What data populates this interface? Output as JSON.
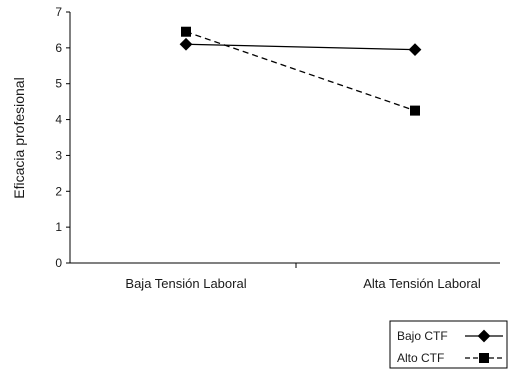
{
  "chart_data": {
    "type": "line",
    "ylabel": "Eficacia profesional",
    "categories": [
      "Baja Tensión Laboral",
      "Alta Tensión Laboral"
    ],
    "ylim": [
      0,
      7
    ],
    "yticks": [
      0,
      1,
      2,
      3,
      4,
      5,
      6,
      7
    ],
    "grid": false,
    "legend_position": "bottom-right",
    "series": [
      {
        "name": "Bajo CTF",
        "values": [
          6.1,
          5.95
        ],
        "marker": "diamond",
        "line": "solid",
        "color": "#000000"
      },
      {
        "name": "Alto CTF",
        "values": [
          6.45,
          4.25
        ],
        "marker": "square",
        "line": "dashed",
        "color": "#000000"
      }
    ]
  }
}
